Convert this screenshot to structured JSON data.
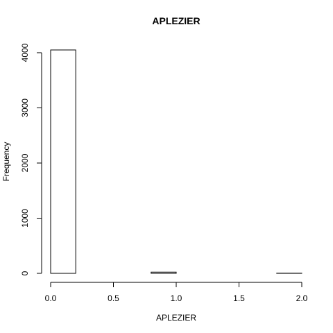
{
  "chart_data": {
    "type": "bar",
    "title": "APLEZIER",
    "xlabel": "APLEZIER",
    "ylabel": "Frequency",
    "histogram": true,
    "bins": [
      {
        "x0": 0.0,
        "x1": 0.2,
        "count": 4050
      },
      {
        "x0": 0.2,
        "x1": 0.4,
        "count": 0
      },
      {
        "x0": 0.4,
        "x1": 0.6,
        "count": 0
      },
      {
        "x0": 0.6,
        "x1": 0.8,
        "count": 0
      },
      {
        "x0": 0.8,
        "x1": 1.0,
        "count": 22
      },
      {
        "x0": 1.0,
        "x1": 1.2,
        "count": 0
      },
      {
        "x0": 1.2,
        "x1": 1.4,
        "count": 0
      },
      {
        "x0": 1.4,
        "x1": 1.6,
        "count": 0
      },
      {
        "x0": 1.6,
        "x1": 1.8,
        "count": 0
      },
      {
        "x0": 1.8,
        "x1": 2.0,
        "count": 3
      }
    ],
    "xlim": [
      0,
      2
    ],
    "ylim": [
      0,
      4050
    ],
    "xticks": [
      0.0,
      0.5,
      1.0,
      1.5,
      2.0
    ],
    "xtick_labels": [
      "0.0",
      "0.5",
      "1.0",
      "1.5",
      "2.0"
    ],
    "yticks": [
      0,
      1000,
      2000,
      3000,
      4000
    ],
    "ytick_labels": [
      "0",
      "1000",
      "2000",
      "3000",
      "4000"
    ],
    "grid": false
  }
}
